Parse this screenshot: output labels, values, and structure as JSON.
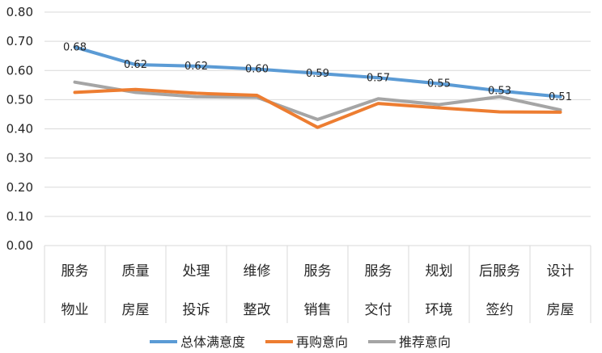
{
  "chart_data": {
    "type": "line",
    "title": "",
    "xlabel": "",
    "ylabel": "",
    "ylim": [
      0,
      0.8
    ],
    "yticks": [
      "0.00",
      "0.10",
      "0.20",
      "0.30",
      "0.40",
      "0.50",
      "0.60",
      "0.70",
      "0.80"
    ],
    "grid": true,
    "legend_position": "bottom",
    "categories": [
      [
        "服务",
        "物业"
      ],
      [
        "质量",
        "房屋"
      ],
      [
        "处理",
        "投诉"
      ],
      [
        "维修",
        "整改"
      ],
      [
        "服务",
        "销售"
      ],
      [
        "服务",
        "交付"
      ],
      [
        "规划",
        "环境"
      ],
      [
        "后服务",
        "签约"
      ],
      [
        "设计",
        "房屋"
      ]
    ],
    "series": [
      {
        "name": "总体满意度",
        "color": "#5B9BD5",
        "values": [
          0.68,
          0.62,
          0.615,
          0.605,
          0.59,
          0.575,
          0.555,
          0.53,
          0.51
        ],
        "labels": [
          "0.68",
          "0.62",
          "0.62",
          "0.60",
          "0.59",
          "0.57",
          "0.55",
          "0.53",
          "0.51"
        ]
      },
      {
        "name": "再购意向",
        "color": "#ED7D31",
        "values": [
          0.525,
          0.535,
          0.522,
          0.515,
          0.405,
          0.487,
          0.472,
          0.458,
          0.457
        ]
      },
      {
        "name": "推荐意向",
        "color": "#A5A5A5",
        "values": [
          0.56,
          0.525,
          0.51,
          0.508,
          0.432,
          0.503,
          0.483,
          0.51,
          0.465
        ]
      }
    ]
  }
}
